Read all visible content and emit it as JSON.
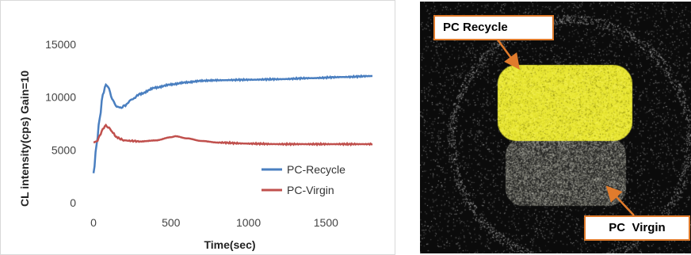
{
  "chart_data": {
    "type": "line",
    "xlabel": "Time(sec)",
    "ylabel": "CL intensity(cps) Gain=10",
    "xlim": [
      0,
      1800
    ],
    "ylim": [
      0,
      15000
    ],
    "x_ticks": [
      "0",
      "500",
      "1000",
      "1500"
    ],
    "y_ticks": [
      "0",
      "5000",
      "10000",
      "15000"
    ],
    "grid": false,
    "legend_position": "bottom-right",
    "series": [
      {
        "name": "PC-Recycle",
        "color": "#4a7fc0",
        "x": [
          0,
          20,
          40,
          60,
          80,
          100,
          120,
          150,
          180,
          200,
          250,
          300,
          400,
          500,
          600,
          700,
          800,
          1000,
          1200,
          1400,
          1600,
          1800
        ],
        "y": [
          2800,
          5500,
          8000,
          10200,
          11200,
          10800,
          9800,
          9100,
          9000,
          9200,
          9800,
          10300,
          10900,
          11200,
          11400,
          11550,
          11600,
          11650,
          11700,
          11800,
          11900,
          12000
        ]
      },
      {
        "name": "PC-Virgin",
        "color": "#c0504d",
        "x": [
          0,
          20,
          40,
          60,
          80,
          100,
          120,
          150,
          180,
          200,
          250,
          300,
          400,
          500,
          530,
          600,
          700,
          800,
          1000,
          1200,
          1400,
          1600,
          1800
        ],
        "y": [
          5700,
          5800,
          6300,
          7000,
          7300,
          7100,
          6700,
          6200,
          6000,
          5900,
          5850,
          5800,
          5900,
          6200,
          6300,
          6100,
          5850,
          5700,
          5600,
          5550,
          5550,
          5550,
          5550
        ]
      }
    ]
  },
  "image_panel": {
    "callout_recycle": "PC Recycle",
    "callout_virgin": "PC  Virgin",
    "callout_border_color": "#e07b2c",
    "recycle_sample_color": "#e8e632",
    "virgin_sample_color": "#8f8f86"
  }
}
